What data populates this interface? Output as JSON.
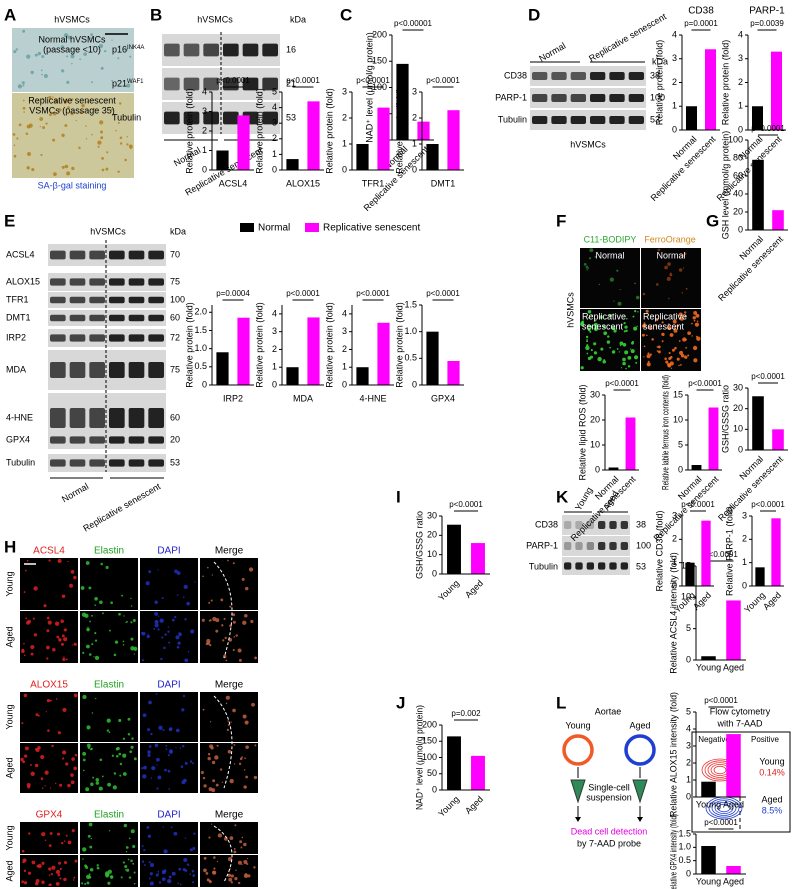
{
  "panels": [
    "A",
    "B",
    "C",
    "D",
    "E",
    "F",
    "G",
    "H",
    "I",
    "J",
    "K",
    "L"
  ],
  "A": {
    "header": "hVSMCs",
    "top": [
      "Normal hVSMCs",
      "(passage <10)"
    ],
    "bottom": [
      "Replicative senescent",
      "VSMCs (passage 35)"
    ],
    "stain": "SA-β-gal staining"
  },
  "B": {
    "header": "hVSMCs",
    "kda_label": "kDa",
    "rows": [
      {
        "name": "p16",
        "sup": "INK4A",
        "kda": 16
      },
      {
        "name": "p21",
        "sup": "WAF1",
        "kda": 21
      },
      {
        "name": "Tubulin",
        "kda": 53
      }
    ],
    "groups": [
      "Normal",
      "Replicative senescent"
    ]
  },
  "D": {
    "groups": [
      "Normal",
      "Replicative senescent"
    ],
    "kda_label": "kDa",
    "rows": [
      {
        "name": "CD38",
        "kda": 38
      },
      {
        "name": "PARP-1",
        "kda": 100
      },
      {
        "name": "Tubulin",
        "kda": 53
      }
    ],
    "cell": "hVSMCs"
  },
  "E": {
    "header": "hVSMCs",
    "kda_label": "kDa",
    "rows": [
      "ACSL4",
      "ALOX15",
      "TFR1",
      "DMT1",
      "IRP2",
      "MDA",
      "4-HNE",
      "GPX4",
      "Tubulin"
    ],
    "kda": [
      70,
      75,
      100,
      60,
      72,
      75,
      60,
      20,
      53
    ],
    "groups": [
      "Normal",
      "Replicative senescent"
    ],
    "legend": [
      {
        "name": "Normal",
        "color": "#000000"
      },
      {
        "name": "Replicative senescent",
        "color": "#ff00ff"
      }
    ]
  },
  "F": {
    "columns": [
      "C11-BODIPY",
      "FerroOrange"
    ],
    "cell": "hVSMCs",
    "rows": [
      "Normal",
      [
        "Replicative",
        "senescent"
      ]
    ]
  },
  "H": {
    "sets": [
      [
        "ACSL4",
        "Elastin",
        "DAPI",
        "Merge"
      ],
      [
        "ALOX15",
        "Elastin",
        "DAPI",
        "Merge"
      ],
      [
        "GPX4",
        "Elastin",
        "DAPI",
        "Merge"
      ]
    ],
    "rows": [
      "Young",
      "Aged"
    ]
  },
  "K": {
    "groups": [
      "Young",
      "Aged"
    ],
    "rows": [
      {
        "name": "CD38",
        "kda": 38
      },
      {
        "name": "PARP-1",
        "kda": 100
      },
      {
        "name": "Tubulin",
        "kda": 53
      }
    ]
  },
  "L": {
    "title": "Aortae",
    "groups": [
      "Young",
      "Aged"
    ],
    "step": [
      "Single-cell",
      "suspension"
    ],
    "detection": [
      "Dead cell detection",
      "by 7-AAD probe"
    ],
    "flow_title": [
      "Flow cytometry",
      "with 7-AAD"
    ],
    "gates": [
      "Negative",
      "Positive"
    ],
    "results": [
      {
        "group": "Young",
        "percent": "0.14%"
      },
      {
        "group": "Aged",
        "percent": "8.5%"
      }
    ]
  },
  "chart_data": [
    {
      "type": "bar",
      "ylabel": "NAD⁺ level (μmol/g protein)",
      "categories": [
        "Normal",
        "Replicative senescent"
      ],
      "values": [
        145,
        35
      ],
      "colors": [
        "#000000",
        "#ff00ff"
      ],
      "ylim": [
        0,
        200
      ],
      "yticks": [
        0,
        50,
        100,
        150,
        200
      ],
      "annotation": "p<0.00001"
    },
    {
      "type": "bar",
      "title": "CD38",
      "ylabel": "Relative protein (fold)",
      "categories": [
        "Normal",
        "Replicative senescent"
      ],
      "values": [
        1,
        3.4
      ],
      "colors": [
        "#000000",
        "#ff00ff"
      ],
      "ylim": [
        0,
        4
      ],
      "yticks": [
        0,
        1,
        2,
        3,
        4
      ],
      "annotation": "p=0.0001"
    },
    {
      "type": "bar",
      "title": "PARP-1",
      "ylabel": "Relative protein (fold)",
      "categories": [
        "Normal",
        "Replicative senescent"
      ],
      "values": [
        1,
        3.3
      ],
      "colors": [
        "#000000",
        "#ff00ff"
      ],
      "ylim": [
        0,
        4
      ],
      "yticks": [
        0,
        1,
        2,
        3,
        4
      ],
      "annotation": "p=0.0039"
    },
    {
      "type": "bar",
      "xlabel": "ACSL4",
      "ylabel": "Relative protein (fold)",
      "values": [
        1,
        2.8
      ],
      "colors": [
        "#000000",
        "#ff00ff"
      ],
      "ylim": [
        0,
        4
      ],
      "yticks": [
        0,
        1,
        2,
        3,
        4
      ],
      "annotation": "p<0.0001"
    },
    {
      "type": "bar",
      "xlabel": "ALOX15",
      "ylabel": "Relative protein (fold)",
      "values": [
        0.7,
        4.4
      ],
      "colors": [
        "#000000",
        "#ff00ff"
      ],
      "ylim": [
        0,
        5
      ],
      "yticks": [
        0,
        1,
        2,
        3,
        4,
        5
      ],
      "annotation": "p<0.0001"
    },
    {
      "type": "bar",
      "xlabel": "TFR1",
      "ylabel": "Relative protein (fold)",
      "values": [
        1,
        2.4
      ],
      "colors": [
        "#000000",
        "#ff00ff"
      ],
      "ylim": [
        0,
        3
      ],
      "yticks": [
        0,
        1,
        2,
        3
      ],
      "annotation": "p<0.0001"
    },
    {
      "type": "bar",
      "xlabel": "DMT1",
      "ylabel": "Relative protein (fold)",
      "values": [
        1,
        2.3
      ],
      "colors": [
        "#000000",
        "#ff00ff"
      ],
      "ylim": [
        0,
        3
      ],
      "yticks": [
        0,
        1,
        2,
        3
      ],
      "annotation": "p<0.0001"
    },
    {
      "type": "bar",
      "xlabel": "IRP2",
      "ylabel": "Relative protein (fold)",
      "values": [
        0.9,
        1.85
      ],
      "colors": [
        "#000000",
        "#ff00ff"
      ],
      "ylim": [
        0,
        2.2
      ],
      "yticks": [
        0,
        0.5,
        {
          "value": 1,
          "label": "1.0"
        },
        1.5,
        {
          "value": 2,
          "label": "2.0"
        }
      ],
      "annotation": "p=0.0004"
    },
    {
      "type": "bar",
      "xlabel": "MDA",
      "ylabel": "Relative protein (fold)",
      "values": [
        1,
        3.8
      ],
      "colors": [
        "#000000",
        "#ff00ff"
      ],
      "ylim": [
        0,
        4.5
      ],
      "yticks": [
        0,
        1,
        2,
        3,
        4
      ],
      "annotation": "p<0.0001"
    },
    {
      "type": "bar",
      "xlabel": "4-HNE",
      "ylabel": "Relative protein (fold)",
      "values": [
        1,
        3.5
      ],
      "colors": [
        "#000000",
        "#ff00ff"
      ],
      "ylim": [
        0,
        4.5
      ],
      "yticks": [
        0,
        1,
        2,
        3,
        4
      ],
      "annotation": "p<0.0001"
    },
    {
      "type": "bar",
      "xlabel": "GPX4",
      "ylabel": "Relative protein (fold)",
      "values": [
        1,
        0.45
      ],
      "colors": [
        "#000000",
        "#ff00ff"
      ],
      "ylim": [
        0,
        1.5
      ],
      "yticks": [
        0,
        0.5,
        {
          "value": 1,
          "label": "1.0"
        },
        1.5
      ],
      "annotation": "p<0.0001"
    },
    {
      "type": "bar",
      "ylabel": "Relative lipid ROS (fold)",
      "categories": [
        "Normal",
        "Replicative senescent"
      ],
      "values": [
        1,
        21
      ],
      "colors": [
        "#000000",
        "#ff00ff"
      ],
      "ylim": [
        0,
        30
      ],
      "yticks": [
        0,
        10,
        20,
        30
      ],
      "annotation": "p<0.0001"
    },
    {
      "type": "bar",
      "ylabel": "Relative labile ferrous iron contents (fold)",
      "categories": [
        "Normal",
        "Replicative senescent"
      ],
      "values": [
        1,
        12.5
      ],
      "colors": [
        "#000000",
        "#ff00ff"
      ],
      "ylim": [
        0,
        15
      ],
      "yticks": [
        0,
        5,
        10,
        15
      ],
      "annotation": "p<0.0001"
    },
    {
      "type": "bar",
      "ylabel": "GSH level (mmol/g protein)",
      "categories": [
        "Normal",
        "Replicative senescent"
      ],
      "values": [
        78,
        22
      ],
      "colors": [
        "#000000",
        "#ff00ff"
      ],
      "ylim": [
        0,
        100
      ],
      "yticks": [
        0,
        20,
        40,
        60,
        80,
        100
      ],
      "annotation": "p<0.0001"
    },
    {
      "type": "bar",
      "ylabel": "GSH/GSSG ratio",
      "categories": [
        "Normal",
        "Replicative senescent"
      ],
      "values": [
        26,
        10
      ],
      "colors": [
        "#000000",
        "#ff00ff"
      ],
      "ylim": [
        0,
        30
      ],
      "yticks": [
        0,
        10,
        20,
        30
      ],
      "annotation": "p<0.0001"
    },
    {
      "type": "bar",
      "ylabel": "Relative ACSL4 intensity (fold)",
      "categories": [
        "Young",
        "Aged"
      ],
      "values": [
        0.6,
        9.5
      ],
      "colors": [
        "#000000",
        "#ff00ff"
      ],
      "ylim": [
        0,
        15
      ],
      "yticks": [
        0,
        5,
        10,
        15
      ],
      "annotation": "p<0.0001"
    },
    {
      "type": "bar",
      "ylabel": "Relative ALOX15 intensity (fold)",
      "categories": [
        "Young",
        "Aged"
      ],
      "values": [
        0.9,
        3.7
      ],
      "colors": [
        "#000000",
        "#ff00ff"
      ],
      "ylim": [
        0,
        5
      ],
      "yticks": [
        0,
        1,
        2,
        3,
        4,
        5
      ],
      "annotation": "p<0.0001"
    },
    {
      "type": "bar",
      "ylabel": "Relative GPX4 intensity (fold)",
      "categories": [
        "Young",
        "Aged"
      ],
      "values": [
        1.05,
        0.3
      ],
      "colors": [
        "#000000",
        "#ff00ff"
      ],
      "ylim": [
        0,
        1.5
      ],
      "yticks": [
        0,
        0.5,
        {
          "value": 1,
          "label": "1.0"
        },
        1.5
      ],
      "annotation": "p<0.0001"
    },
    {
      "type": "bar",
      "ylabel": "GSH/GSSG ratio",
      "categories": [
        "Young",
        "Aged"
      ],
      "values": [
        25.5,
        16
      ],
      "colors": [
        "#000000",
        "#ff00ff"
      ],
      "ylim": [
        0,
        30
      ],
      "yticks": [
        0,
        10,
        20,
        30
      ],
      "annotation": "p<0.0001"
    },
    {
      "type": "bar",
      "ylabel": "NAD⁺ level (μmol/g protein)",
      "categories": [
        "Young",
        "Aged"
      ],
      "values": [
        165,
        105
      ],
      "colors": [
        "#000000",
        "#ff00ff"
      ],
      "ylim": [
        0,
        200
      ],
      "yticks": [
        0,
        50,
        100,
        150,
        200
      ],
      "annotation": "p=0.002"
    },
    {
      "type": "bar",
      "ylabel": "Relative CD38 (fold)",
      "categories": [
        "Young",
        "Aged"
      ],
      "values": [
        1,
        2.8
      ],
      "colors": [
        "#000000",
        "#ff00ff"
      ],
      "ylim": [
        0,
        3
      ],
      "yticks": [
        0,
        1,
        2,
        3
      ],
      "annotation": "p<0.0001"
    },
    {
      "type": "bar",
      "ylabel": "Relative PARP-1 (fold)",
      "categories": [
        "Young",
        "Aged"
      ],
      "values": [
        0.8,
        2.9
      ],
      "colors": [
        "#000000",
        "#ff00ff"
      ],
      "ylim": [
        0,
        3
      ],
      "yticks": [
        0,
        1,
        2,
        3
      ],
      "annotation": "p<0.0001"
    }
  ]
}
